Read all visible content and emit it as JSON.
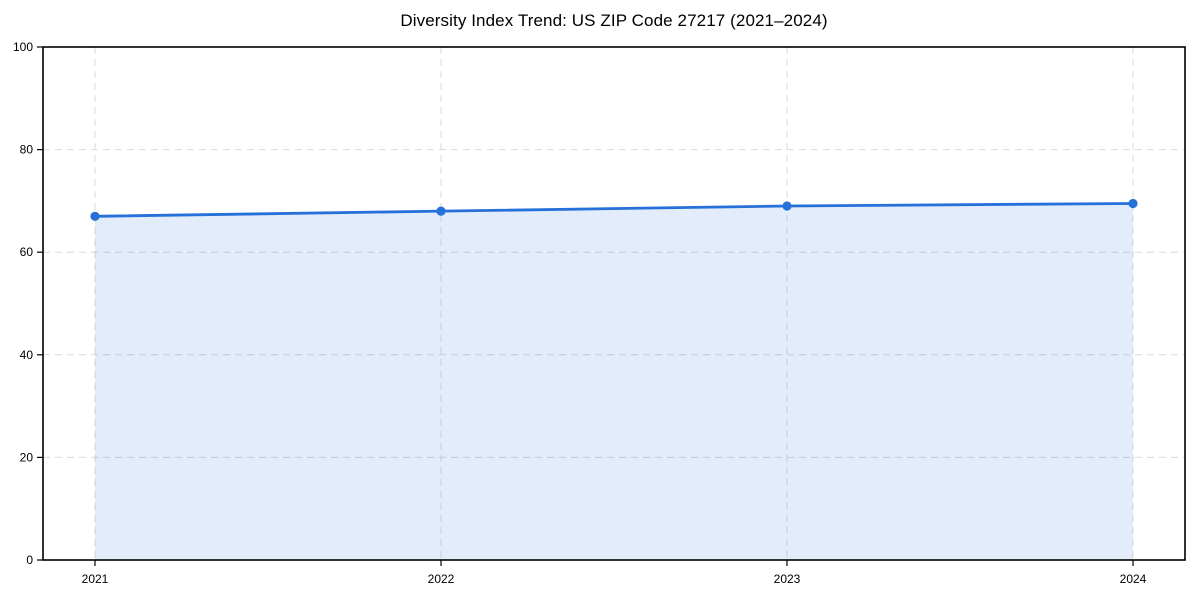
{
  "page": {
    "background": "#ffffff"
  },
  "chart_data": {
    "type": "area",
    "title": "Diversity Index Trend: US ZIP Code 27217 (2021–2024)",
    "x": [
      2021,
      2022,
      2023,
      2024
    ],
    "series": [
      {
        "name": "Diversity Index",
        "values": [
          67,
          68,
          69,
          69.5
        ]
      }
    ],
    "xlabel": "",
    "ylabel": "",
    "ylim": [
      0,
      100
    ],
    "yticks": [
      0,
      20,
      40,
      60,
      80,
      100
    ],
    "grid": true,
    "grid_style": "dashed",
    "legend_position": "none",
    "marker": "circle",
    "line_color": "#2670d9",
    "fill_color": "rgba(38, 112, 217, 0.13)",
    "grid_color": "#d9d9d9",
    "axis_color": "#000000",
    "text_color": "#000000"
  }
}
